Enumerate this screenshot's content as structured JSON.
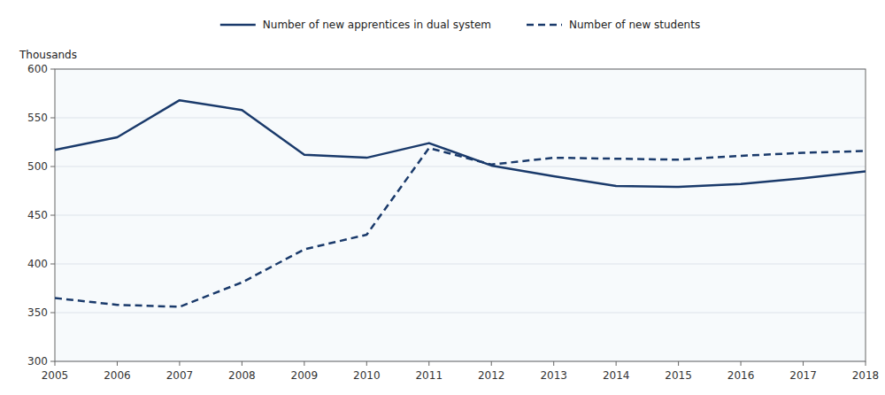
{
  "chart_data": {
    "type": "line",
    "ylabel": "Thousands",
    "x": [
      2005,
      2006,
      2007,
      2008,
      2009,
      2010,
      2011,
      2012,
      2013,
      2014,
      2015,
      2016,
      2017,
      2018
    ],
    "series": [
      {
        "name": "Number of new apprentices in dual system",
        "color": "#1a3a6b",
        "line_style": "solid",
        "values": [
          517,
          530,
          568,
          558,
          512,
          509,
          524,
          501,
          490,
          480,
          479,
          482,
          488,
          495
        ]
      },
      {
        "name": "Number of new students",
        "color": "#1a3a6b",
        "line_style": "dashed",
        "values": [
          365,
          358,
          356,
          381,
          415,
          430,
          519,
          502,
          509,
          508,
          507,
          511,
          514,
          516
        ]
      }
    ],
    "xlim": [
      2005,
      2018
    ],
    "xticks": [
      2005,
      2006,
      2007,
      2008,
      2009,
      2010,
      2011,
      2012,
      2013,
      2014,
      2015,
      2016,
      2017,
      2018
    ],
    "ylim": [
      300,
      600
    ],
    "yticks": [
      300,
      350,
      400,
      450,
      500,
      550,
      600
    ],
    "grid": true,
    "legend": "top"
  }
}
